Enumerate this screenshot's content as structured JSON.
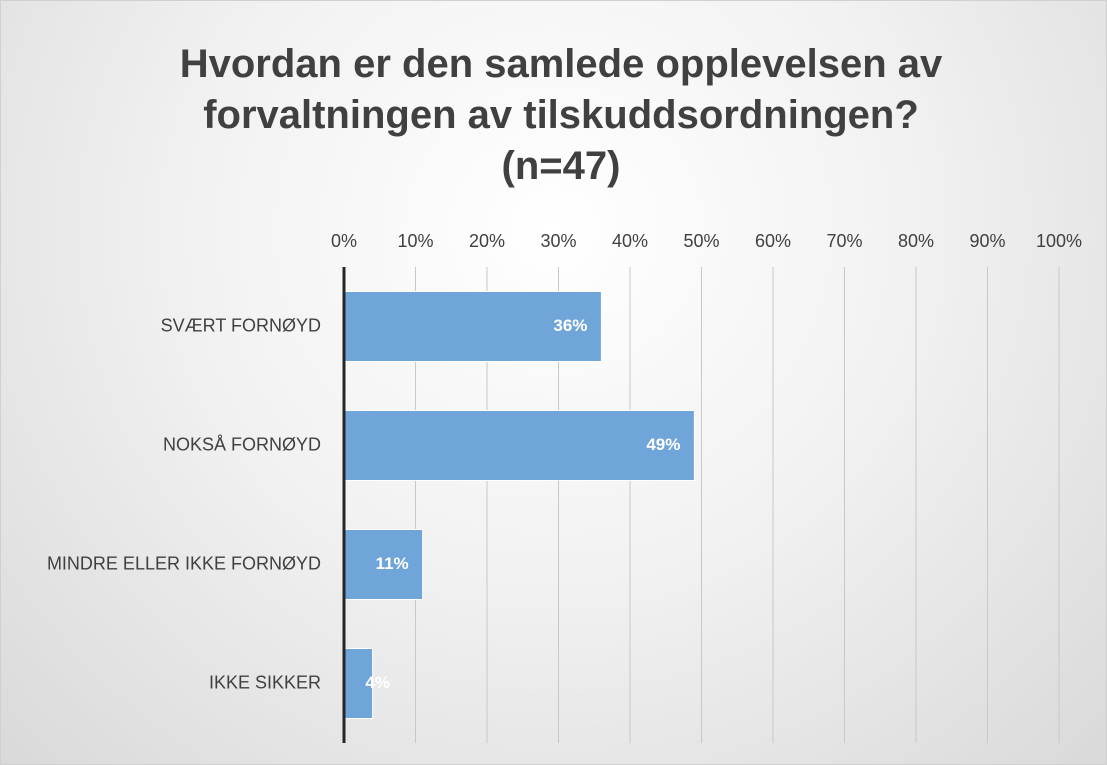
{
  "chart_data": {
    "type": "bar",
    "orientation": "horizontal",
    "title": "Hvordan er den samlede opplevelsen av forvaltningen av tilskuddsordningen? (n=47)",
    "categories": [
      "SVÆRT FORNØYD",
      "NOKSÅ FORNØYD",
      "MINDRE ELLER IKKE FORNØYD",
      "IKKE SIKKER"
    ],
    "values": [
      36,
      49,
      11,
      4
    ],
    "value_labels": [
      "36%",
      "49%",
      "11%",
      "4%"
    ],
    "color": "#6fa5d8",
    "xlim": [
      0,
      100
    ],
    "xticks": [
      {
        "value": 0,
        "label": "0%"
      },
      {
        "value": 10,
        "label": "10%"
      },
      {
        "value": 20,
        "label": "20%"
      },
      {
        "value": 30,
        "label": "30%"
      },
      {
        "value": 40,
        "label": "40%"
      },
      {
        "value": 50,
        "label": "50%"
      },
      {
        "value": 60,
        "label": "60%"
      },
      {
        "value": 70,
        "label": "70%"
      },
      {
        "value": 80,
        "label": "80%"
      },
      {
        "value": 90,
        "label": "90%"
      },
      {
        "value": 100,
        "label": "100%"
      }
    ],
    "grid": true
  }
}
